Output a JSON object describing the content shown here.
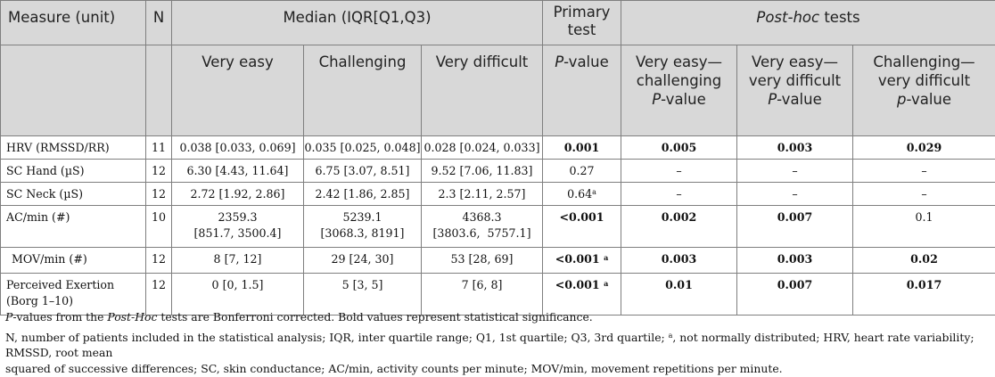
{
  "header": {
    "measure": "Measure (unit)",
    "n": "N",
    "median": "Median (IQR[Q1,Q3)",
    "primary_line1": "Primary",
    "primary_line2": "test",
    "posthoc_italic": "Post-hoc",
    "posthoc_rest": " tests",
    "very_easy": "Very easy",
    "challenging": "Challenging",
    "very_difficult": "Very difficult",
    "p_italic": "P",
    "p_rest": "-value",
    "ph1_line1": "Very easy—",
    "ph1_line2": "challenging",
    "ph2_line1": "Very easy—",
    "ph2_line2": "very difficult",
    "ph3_line1": "Challenging—",
    "ph3_line2": "very difficult",
    "ph3_p": "p"
  },
  "rows": [
    {
      "measure": "HRV (RMSSD/RR)",
      "n": "11",
      "ve": "0.038 [0.033, 0.069]",
      "ch": "0.035 [0.025, 0.048]",
      "vd": "0.028 [0.024, 0.033]",
      "p": "0.001",
      "sup": "",
      "ph1": "0.005",
      "ph2": "0.003",
      "ph3": "0.029"
    },
    {
      "measure": "SC Hand (µS)",
      "n": "12",
      "ve": "6.30 [4.43, 11.64]",
      "ch": "6.75 [3.07, 8.51]",
      "vd": "9.52 [7.06, 11.83]",
      "p": "0.27",
      "sup": "",
      "ph1": "–",
      "ph2": "–",
      "ph3": "–"
    },
    {
      "measure": "SC Neck (µS)",
      "n": "12",
      "ve": "2.72 [1.92, 2.86]",
      "ch": "2.42 [1.86, 2.85]",
      "vd": "2.3 [2.11, 2.57]",
      "p": "0.64",
      "sup": "a",
      "ph1": "–",
      "ph2": "–",
      "ph3": "–"
    },
    {
      "measure": "AC/min (#)",
      "n": "10",
      "ve1": "2359.3",
      "ve2": "[851.7, 3500.4]",
      "ch1": "5239.1",
      "ch2": "[3068.3, 8191]",
      "vd1": "4368.3",
      "vd2": "[3803.6,  5757.1]",
      "p": "<0.001",
      "sup": "",
      "ph1": "0.002",
      "ph2": "0.007",
      "ph3": "0.1"
    },
    {
      "measure": "MOV/min (#)",
      "n": "12",
      "ve": "8 [7, 12]",
      "ch": "29 [24, 30]",
      "vd": "53 [28, 69]",
      "p": "<0.001",
      "sup": "a",
      "ph1": "0.003",
      "ph2": "0.003",
      "ph3": "0.02"
    },
    {
      "measure1": "Perceived Exertion",
      "measure2": "(Borg 1–10)",
      "n": "12",
      "ve": "0 [0, 1.5]",
      "ch": "5 [3, 5]",
      "vd": "7 [6, 8]",
      "p": "<0.001",
      "sup": "a",
      "ph1": "0.01",
      "ph2": "0.007",
      "ph3": "0.017"
    }
  ],
  "notes": {
    "line1_italic1": "P",
    "line1_a": "-values from the ",
    "line1_italic2": "Post-Hoc",
    "line1_b": " tests are Bonferroni corrected. Bold values represent statistical significance.",
    "line2_a": "N, number of patients included in the statistical analysis; IQR, inter quartile range; Q1, 1st quartile; Q3, 3rd quartile; ",
    "line2_sup": "a",
    "line2_b": ", not normally distributed; HRV, heart rate variability; RMSSD, root mean",
    "line3": "squared of successive differences; SC, skin conductance; AC/min, activity counts per minute; MOV/min, movement repetitions per minute."
  }
}
